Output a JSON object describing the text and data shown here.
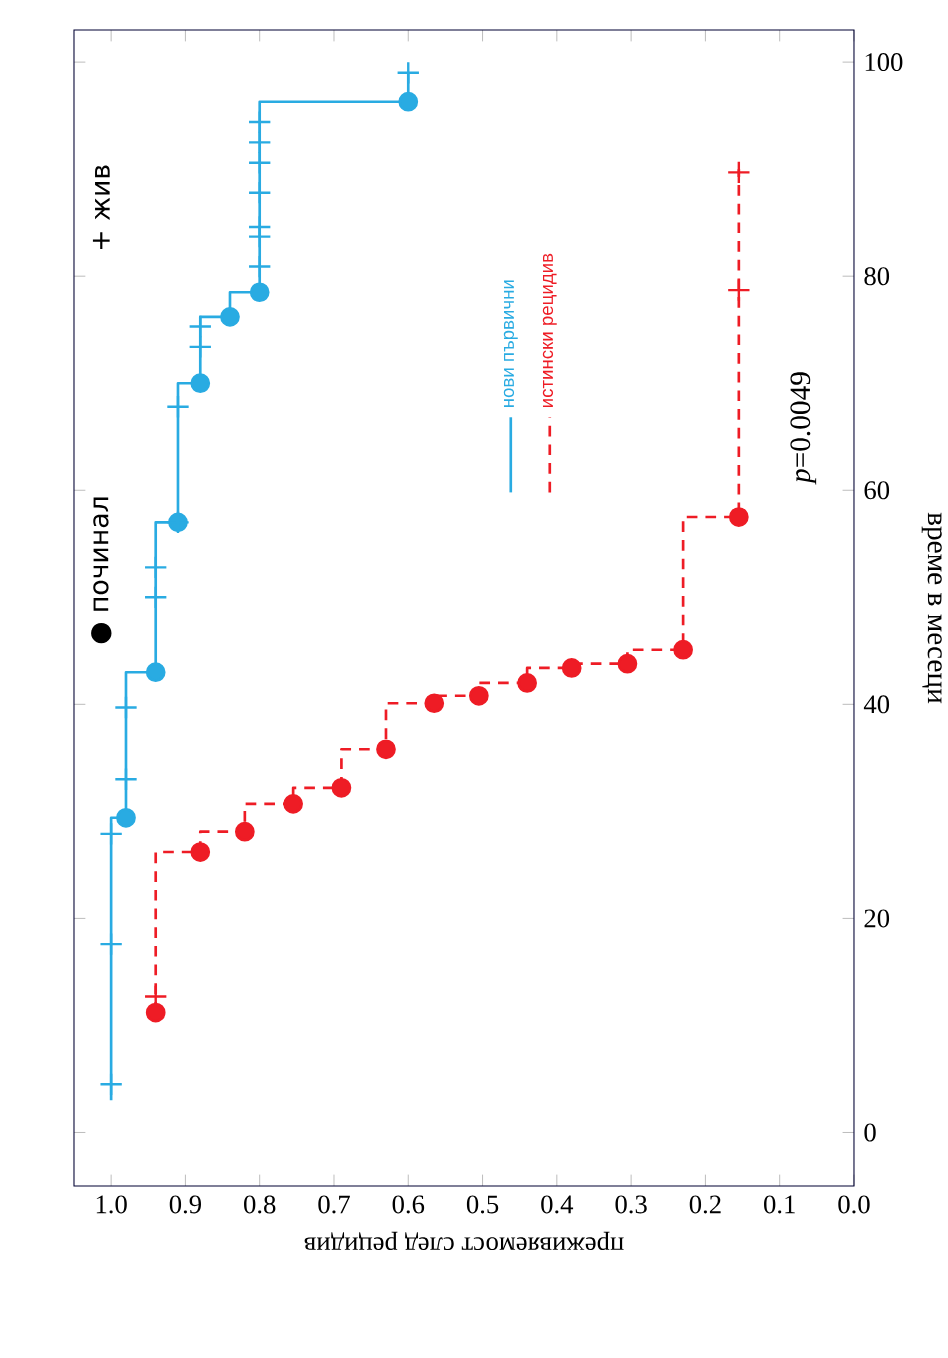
{
  "chart_data": {
    "type": "step",
    "xlabel": "преживяемост след рецидив",
    "ylabel": "време в месеци",
    "xlim": [
      1.05,
      0
    ],
    "ylim": [
      -5,
      103
    ],
    "xticks": [
      {
        "value": 1,
        "label": "1.0"
      },
      {
        "value": 0.9,
        "label": "0.9"
      },
      {
        "value": 0.8,
        "label": "0.8"
      },
      {
        "value": 0.7,
        "label": "0.7"
      },
      {
        "value": 0.6,
        "label": "0.6"
      },
      {
        "value": 0.5,
        "label": "0.5"
      },
      {
        "value": 0.4,
        "label": "0.4"
      },
      {
        "value": 0.3,
        "label": "0.3"
      },
      {
        "value": 0.2,
        "label": "0.2"
      },
      {
        "value": 0.1,
        "label": "0.1"
      },
      {
        "value": 0,
        "label": "0.0"
      }
    ],
    "yticks": [
      0,
      20,
      40,
      60,
      80,
      100
    ],
    "grid": false,
    "legend": "center",
    "annotations": [
      "*p*=0.0049",
      "● починал",
      "+ жив"
    ],
    "series": [
      {
        "name": "нови първични",
        "color": "#29abe2",
        "line_style": "solid",
        "marker": "none",
        "x": [
          1.0,
          0.98,
          0.94,
          0.91,
          0.88,
          0.84,
          0.8,
          0.6,
          0.6
        ],
        "values": [
          3,
          29.4,
          43,
          57,
          70,
          76.2,
          78.5,
          96.3,
          99
        ]
      },
      {
        "name": "истински рецидив",
        "color": "#ee1c25",
        "line_style": "dashed",
        "marker": "none",
        "x": [
          0.94,
          0.88,
          0.82,
          0.755,
          0.69,
          0.63,
          0.565,
          0.505,
          0.44,
          0.38,
          0.305,
          0.23,
          0.155,
          0.155
        ],
        "values": [
          11.2,
          26.2,
          28.1,
          30.7,
          32.2,
          35.8,
          40.1,
          40.8,
          42,
          43.4,
          43.8,
          45.1,
          57.5,
          90
        ]
      },
      {
        "type": "scatter",
        "color": "#29abe2",
        "marker": "circle",
        "x": [
          0.98,
          0.94,
          0.91,
          0.88,
          0.84,
          0.8,
          0.6
        ],
        "values": [
          29.4,
          43,
          57,
          70,
          76.2,
          78.5,
          96.3
        ]
      },
      {
        "type": "scatter",
        "color": "#ee1c25",
        "marker": "circle",
        "x": [
          0.94,
          0.88,
          0.82,
          0.755,
          0.69,
          0.63,
          0.565,
          0.505,
          0.44,
          0.38,
          0.305,
          0.23,
          0.155
        ],
        "values": [
          11.2,
          26.2,
          28.1,
          30.7,
          32.2,
          35.8,
          40.1,
          40.8,
          42,
          43.4,
          43.8,
          45.1,
          57.5
        ]
      },
      {
        "type": "scatter",
        "color": "#29abe2",
        "marker": "cross",
        "x": [
          1.0,
          1.0,
          1.0,
          0.98,
          0.98,
          0.94,
          0.94,
          0.91,
          0.91,
          0.88,
          0.88,
          0.8,
          0.8,
          0.8,
          0.8,
          0.8,
          0.8,
          0.8,
          0.6
        ],
        "values": [
          4.5,
          17.6,
          27.9,
          33,
          39.7,
          50,
          52.8,
          57,
          67.8,
          73.4,
          75.3,
          80.9,
          83.7,
          84.6,
          87.8,
          90.6,
          92.5,
          94.4,
          99
        ]
      },
      {
        "type": "scatter",
        "color": "#ee1c25",
        "marker": "cross",
        "x": [
          0.94,
          0.155,
          0.155
        ],
        "values": [
          12.7,
          78.7,
          89.7
        ]
      }
    ]
  }
}
